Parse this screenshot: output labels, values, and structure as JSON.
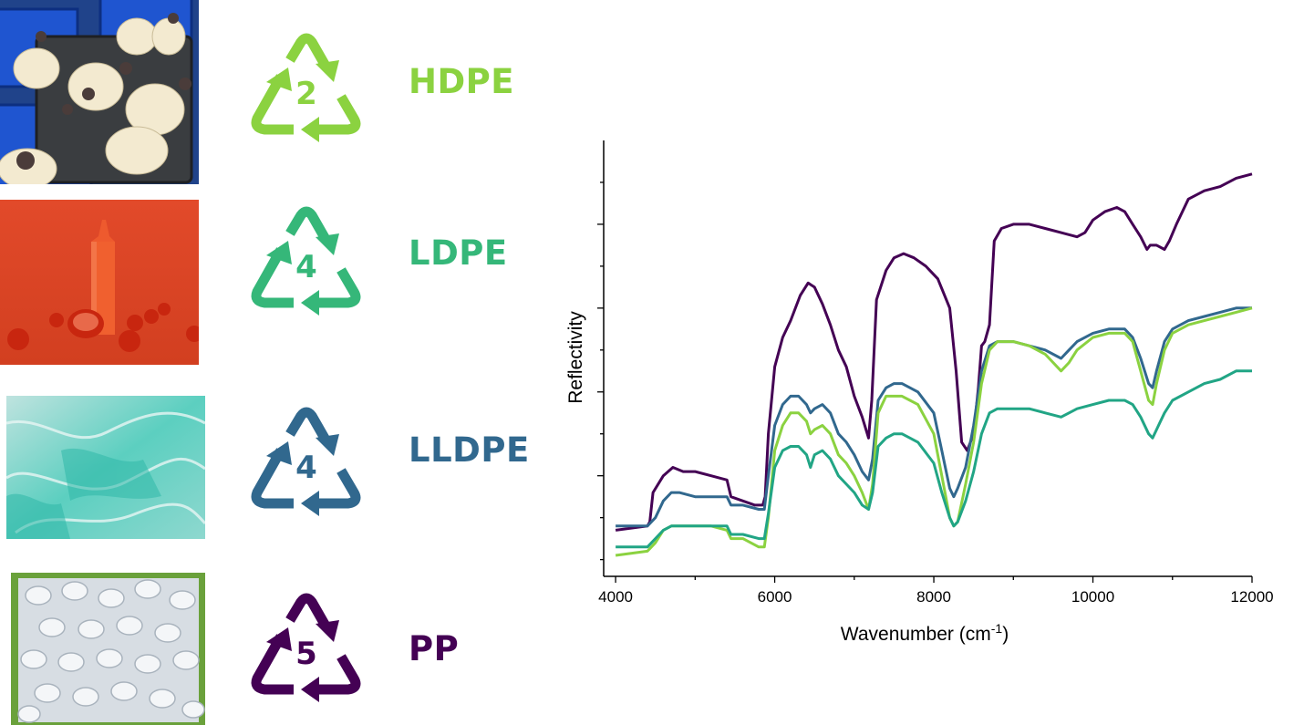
{
  "plastics": [
    {
      "code": "2",
      "name": "HDPE",
      "color": "#8bd240",
      "photo": "milk-jugs-in-crates"
    },
    {
      "code": "4",
      "name": "LDPE",
      "color": "#35b779",
      "photo": "squeeze-bottle-and-tomatoes"
    },
    {
      "code": "4",
      "name": "LLDPE",
      "color": "#31688e",
      "photo": "teal-plastic-film"
    },
    {
      "code": "5",
      "name": "PP",
      "color": "#440154",
      "photo": "white-plastic-cups"
    }
  ],
  "chart_data": {
    "type": "line",
    "xlabel": "Wavenumber (cm",
    "xlabel_sup": "-1",
    "xlabel_close": ")",
    "ylabel": "Reflectivity",
    "xlim": [
      3850,
      12000
    ],
    "ylim": [
      -0.04,
      1.0
    ],
    "xticks": [
      4000,
      6000,
      8000,
      10000,
      12000
    ],
    "y_ticks_labeled": false,
    "grid": false,
    "legend": "none",
    "series": [
      {
        "color": "#440154",
        "x": [
          4000,
          4400,
          4430,
          4470,
          4600,
          4720,
          4850,
          5000,
          5200,
          5400,
          5450,
          5600,
          5750,
          5850,
          5880,
          5920,
          6000,
          6100,
          6200,
          6320,
          6420,
          6500,
          6600,
          6700,
          6800,
          6900,
          7000,
          7100,
          7180,
          7220,
          7280,
          7400,
          7500,
          7620,
          7750,
          7900,
          8050,
          8200,
          8280,
          8350,
          8420,
          8500,
          8560,
          8600,
          8640,
          8700,
          8760,
          8850,
          9000,
          9200,
          9400,
          9600,
          9800,
          9900,
          10000,
          10150,
          10300,
          10400,
          10500,
          10600,
          10680,
          10720,
          10800,
          10900,
          10960,
          11050,
          11200,
          11400,
          11600,
          11800,
          12000
        ],
        "y": [
          0.07,
          0.08,
          0.09,
          0.16,
          0.2,
          0.22,
          0.21,
          0.21,
          0.2,
          0.19,
          0.15,
          0.14,
          0.13,
          0.13,
          0.15,
          0.3,
          0.46,
          0.53,
          0.57,
          0.63,
          0.66,
          0.65,
          0.61,
          0.56,
          0.5,
          0.46,
          0.39,
          0.34,
          0.29,
          0.38,
          0.62,
          0.69,
          0.72,
          0.73,
          0.72,
          0.7,
          0.67,
          0.6,
          0.45,
          0.28,
          0.26,
          0.3,
          0.41,
          0.51,
          0.52,
          0.56,
          0.76,
          0.79,
          0.8,
          0.8,
          0.79,
          0.78,
          0.77,
          0.78,
          0.81,
          0.83,
          0.84,
          0.83,
          0.8,
          0.77,
          0.74,
          0.75,
          0.75,
          0.74,
          0.76,
          0.8,
          0.86,
          0.88,
          0.89,
          0.91,
          0.92
        ]
      },
      {
        "color": "#31688e",
        "x": [
          4000,
          4400,
          4500,
          4600,
          4700,
          4800,
          5000,
          5200,
          5400,
          5450,
          5600,
          5800,
          5870,
          5920,
          6000,
          6100,
          6200,
          6300,
          6400,
          6450,
          6500,
          6600,
          6700,
          6800,
          6900,
          7000,
          7100,
          7180,
          7230,
          7300,
          7400,
          7500,
          7600,
          7700,
          7800,
          8000,
          8100,
          8200,
          8250,
          8300,
          8400,
          8500,
          8600,
          8700,
          8800,
          9000,
          9200,
          9400,
          9600,
          9700,
          9800,
          10000,
          10200,
          10400,
          10500,
          10600,
          10700,
          10750,
          10800,
          10900,
          11000,
          11200,
          11400,
          11600,
          11800,
          12000
        ],
        "y": [
          0.08,
          0.08,
          0.1,
          0.14,
          0.16,
          0.16,
          0.15,
          0.15,
          0.15,
          0.13,
          0.13,
          0.12,
          0.12,
          0.2,
          0.32,
          0.37,
          0.39,
          0.39,
          0.37,
          0.35,
          0.36,
          0.37,
          0.35,
          0.3,
          0.28,
          0.25,
          0.21,
          0.19,
          0.24,
          0.38,
          0.41,
          0.42,
          0.42,
          0.41,
          0.4,
          0.35,
          0.26,
          0.17,
          0.15,
          0.17,
          0.22,
          0.32,
          0.45,
          0.51,
          0.52,
          0.52,
          0.51,
          0.5,
          0.48,
          0.5,
          0.52,
          0.54,
          0.55,
          0.55,
          0.53,
          0.48,
          0.42,
          0.41,
          0.45,
          0.52,
          0.55,
          0.57,
          0.58,
          0.59,
          0.6,
          0.6
        ]
      },
      {
        "color": "#8bd240",
        "x": [
          4000,
          4400,
          4500,
          4600,
          4700,
          4800,
          5000,
          5200,
          5400,
          5450,
          5600,
          5700,
          5800,
          5870,
          5920,
          6000,
          6100,
          6200,
          6300,
          6400,
          6450,
          6500,
          6600,
          6700,
          6800,
          6900,
          7000,
          7100,
          7180,
          7230,
          7300,
          7400,
          7500,
          7600,
          7700,
          7800,
          8000,
          8100,
          8200,
          8250,
          8300,
          8400,
          8500,
          8600,
          8700,
          8800,
          9000,
          9200,
          9400,
          9600,
          9700,
          9800,
          10000,
          10200,
          10400,
          10500,
          10600,
          10700,
          10750,
          10800,
          10900,
          11000,
          11200,
          11400,
          11600,
          11800,
          12000
        ],
        "y": [
          0.01,
          0.02,
          0.04,
          0.07,
          0.08,
          0.08,
          0.08,
          0.08,
          0.07,
          0.05,
          0.05,
          0.04,
          0.03,
          0.03,
          0.1,
          0.26,
          0.32,
          0.35,
          0.35,
          0.33,
          0.3,
          0.31,
          0.32,
          0.3,
          0.25,
          0.23,
          0.2,
          0.16,
          0.12,
          0.18,
          0.35,
          0.39,
          0.39,
          0.39,
          0.38,
          0.37,
          0.3,
          0.2,
          0.1,
          0.08,
          0.09,
          0.18,
          0.28,
          0.42,
          0.5,
          0.52,
          0.52,
          0.51,
          0.49,
          0.45,
          0.47,
          0.5,
          0.53,
          0.54,
          0.54,
          0.52,
          0.45,
          0.38,
          0.37,
          0.42,
          0.5,
          0.54,
          0.56,
          0.57,
          0.58,
          0.59,
          0.6
        ]
      },
      {
        "color": "#21a585",
        "x": [
          4000,
          4400,
          4500,
          4600,
          4700,
          4800,
          5000,
          5200,
          5400,
          5450,
          5600,
          5800,
          5870,
          5920,
          6000,
          6100,
          6200,
          6300,
          6400,
          6450,
          6500,
          6600,
          6700,
          6800,
          6900,
          7000,
          7100,
          7180,
          7230,
          7300,
          7400,
          7500,
          7600,
          7700,
          7800,
          8000,
          8100,
          8200,
          8250,
          8300,
          8400,
          8500,
          8600,
          8700,
          8800,
          9000,
          9200,
          9400,
          9600,
          9700,
          9800,
          10000,
          10200,
          10400,
          10500,
          10600,
          10700,
          10750,
          10800,
          10900,
          11000,
          11200,
          11400,
          11600,
          11800,
          12000
        ],
        "y": [
          0.03,
          0.03,
          0.05,
          0.07,
          0.08,
          0.08,
          0.08,
          0.08,
          0.08,
          0.06,
          0.06,
          0.05,
          0.05,
          0.11,
          0.22,
          0.26,
          0.27,
          0.27,
          0.25,
          0.22,
          0.25,
          0.26,
          0.24,
          0.2,
          0.18,
          0.16,
          0.13,
          0.12,
          0.16,
          0.27,
          0.29,
          0.3,
          0.3,
          0.29,
          0.28,
          0.23,
          0.16,
          0.1,
          0.08,
          0.09,
          0.14,
          0.21,
          0.3,
          0.35,
          0.36,
          0.36,
          0.36,
          0.35,
          0.34,
          0.35,
          0.36,
          0.37,
          0.38,
          0.38,
          0.37,
          0.34,
          0.3,
          0.29,
          0.31,
          0.35,
          0.38,
          0.4,
          0.42,
          0.43,
          0.45,
          0.45
        ]
      }
    ]
  }
}
